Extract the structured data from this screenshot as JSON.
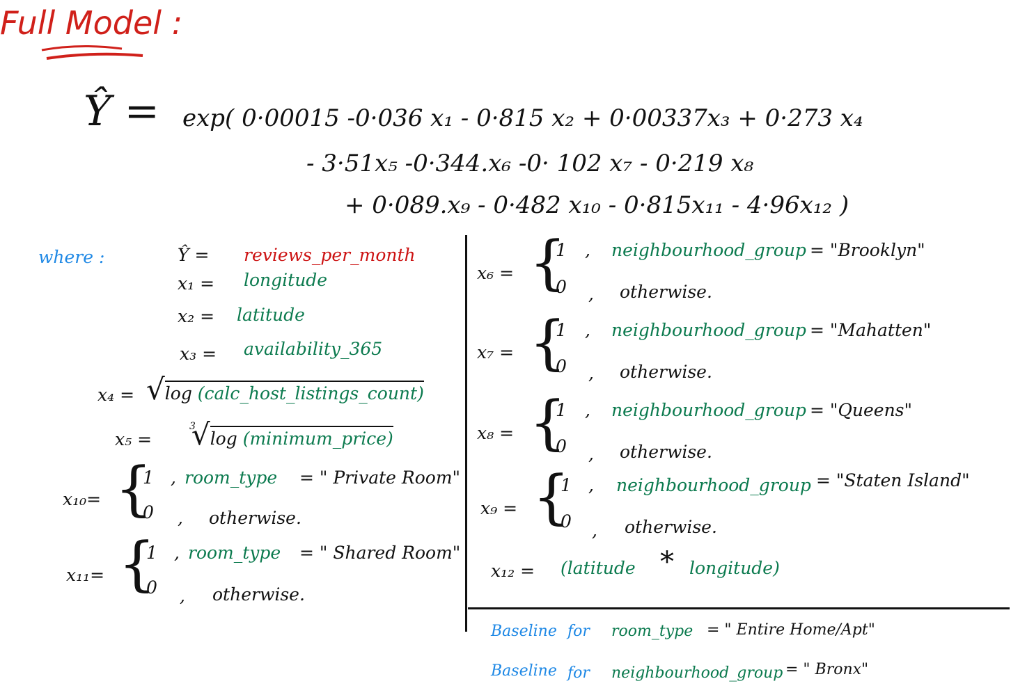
{
  "title": "Full Model :",
  "equation": {
    "lhs": "Ŷ =",
    "line1": "exp( 0·00015 -0·036 x₁ - 0·815 x₂ + 0·00337x₃ + 0·273 x₄",
    "line2": "- 3·51x₅ -0·344.x₆ -0· 102 x₇ - 0·219 x₈",
    "line3": "+ 0·089.x₉ - 0·482 x₁₀ - 0·815x₁₁ - 4·96x₁₂ )"
  },
  "where_label": "where :",
  "definitions": [
    {
      "lhs": "Ŷ =",
      "rhs": "reviews_per_month",
      "color": "red"
    },
    {
      "lhs": "x₁ =",
      "rhs": "longitude",
      "color": "green"
    },
    {
      "lhs": "x₂ =",
      "rhs": "latitude",
      "color": "green"
    },
    {
      "lhs": "x₃ =",
      "rhs": "availability_365",
      "color": "green"
    }
  ],
  "x4": {
    "lhs": "x₄ =",
    "fn": "log",
    "arg": "(calc_host_listings_count)"
  },
  "x5": {
    "lhs": "x₅ =",
    "index": "3",
    "fn": "log",
    "arg": "(minimum_price)"
  },
  "left_cases": [
    {
      "lhs": "x₁₀=",
      "one": "1",
      "cond_var": "room_type",
      "cond_val": "= \" Private Room\"",
      "zero": "0",
      "otherwise": "otherwise."
    },
    {
      "lhs": "x₁₁=",
      "one": "1",
      "cond_var": "room_type",
      "cond_val": "= \" Shared Room\"",
      "zero": "0",
      "otherwise": "otherwise."
    }
  ],
  "right_cases": [
    {
      "lhs": "x₆ =",
      "one": "1",
      "cond_var": "neighbourhood_group",
      "cond_val": "= \"Brooklyn\"",
      "zero": "0",
      "otherwise": "otherwise."
    },
    {
      "lhs": "x₇ =",
      "one": "1",
      "cond_var": "neighbourhood_group",
      "cond_val": "= \"Mahatten\"",
      "zero": "0",
      "otherwise": "otherwise."
    },
    {
      "lhs": "x₈ =",
      "one": "1",
      "cond_var": "neighbourhood_group",
      "cond_val": "= \"Queens\"",
      "zero": "0",
      "otherwise": "otherwise."
    },
    {
      "lhs": "x₉ =",
      "one": "1",
      "cond_var": "neighbourhood_group",
      "cond_val": "= \"Staten Island\"",
      "zero": "0",
      "otherwise": "otherwise."
    }
  ],
  "x12": {
    "lhs": "x₁₂ =",
    "rhs_a": "(latitude",
    "op": "*",
    "rhs_b": "longitude)"
  },
  "baselines": [
    {
      "label": "Baseline",
      "for": "for",
      "var": "room_type",
      "val": "= \" Entire Home/Apt\""
    },
    {
      "label": "Baseline",
      "for": "for",
      "var": "neighbourhood_group",
      "val": "= \" Bronx\""
    }
  ],
  "colors": {
    "title": "#d0201a",
    "variable": "#0b7a4e",
    "baseline": "#1e88e5",
    "response": "#cc1111"
  }
}
